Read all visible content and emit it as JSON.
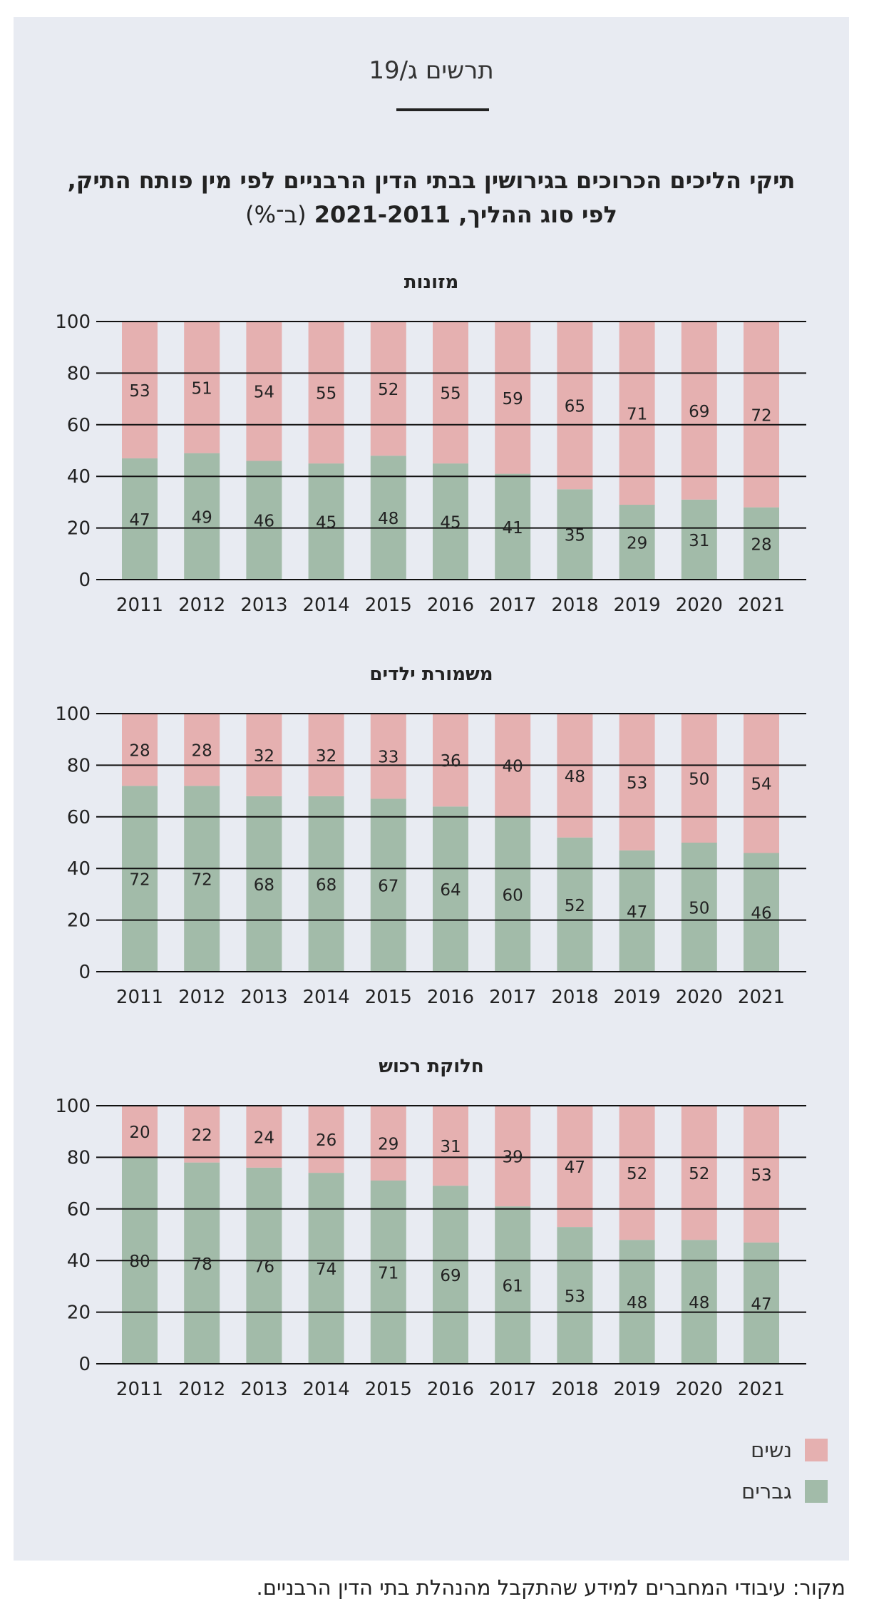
{
  "figure_label": "תרשים ג/19",
  "title": "תיקי הליכים הכרוכים בגירושין בבתי הדין הרבניים לפי מין פותח התיק, לפי סוג ההליך, 2021-2011",
  "title_unit": "(ב־%)",
  "colors": {
    "women": "#e5b0b0",
    "men": "#a2bba9",
    "background": "#e8ebf2",
    "gridline": "#111111"
  },
  "legend": {
    "women": "נשים",
    "men": "גברים"
  },
  "source": "מקור: עיבודי המחברים למידע שהתקבל מהנהלת בתי הדין הרבניים.",
  "chart_data": [
    {
      "type": "bar",
      "stacked": true,
      "title": "מזונות",
      "categories": [
        "2011",
        "2012",
        "2013",
        "2014",
        "2015",
        "2016",
        "2017",
        "2018",
        "2019",
        "2020",
        "2021"
      ],
      "series": [
        {
          "name": "גברים",
          "color_key": "men",
          "values": [
            47,
            49,
            46,
            45,
            48,
            45,
            41,
            35,
            29,
            31,
            28
          ]
        },
        {
          "name": "נשים",
          "color_key": "women",
          "values": [
            53,
            51,
            54,
            55,
            52,
            55,
            59,
            65,
            71,
            69,
            72
          ]
        }
      ],
      "ylim": [
        0,
        100
      ],
      "yticks": [
        0,
        20,
        40,
        60,
        80,
        100
      ],
      "grid": true
    },
    {
      "type": "bar",
      "stacked": true,
      "title": "משמורת ילדים",
      "categories": [
        "2011",
        "2012",
        "2013",
        "2014",
        "2015",
        "2016",
        "2017",
        "2018",
        "2019",
        "2020",
        "2021"
      ],
      "series": [
        {
          "name": "גברים",
          "color_key": "men",
          "values": [
            72,
            72,
            68,
            68,
            67,
            64,
            60,
            52,
            47,
            50,
            46
          ]
        },
        {
          "name": "נשים",
          "color_key": "women",
          "values": [
            28,
            28,
            32,
            32,
            33,
            36,
            40,
            48,
            53,
            50,
            54
          ]
        }
      ],
      "ylim": [
        0,
        100
      ],
      "yticks": [
        0,
        20,
        40,
        60,
        80,
        100
      ],
      "grid": true
    },
    {
      "type": "bar",
      "stacked": true,
      "title": "חלוקת רכוש",
      "categories": [
        "2011",
        "2012",
        "2013",
        "2014",
        "2015",
        "2016",
        "2017",
        "2018",
        "2019",
        "2020",
        "2021"
      ],
      "series": [
        {
          "name": "גברים",
          "color_key": "men",
          "values": [
            80,
            78,
            76,
            74,
            71,
            69,
            61,
            53,
            48,
            48,
            47
          ]
        },
        {
          "name": "נשים",
          "color_key": "women",
          "values": [
            20,
            22,
            24,
            26,
            29,
            31,
            39,
            47,
            52,
            52,
            53
          ]
        }
      ],
      "ylim": [
        0,
        100
      ],
      "yticks": [
        0,
        20,
        40,
        60,
        80,
        100
      ],
      "grid": true
    }
  ]
}
